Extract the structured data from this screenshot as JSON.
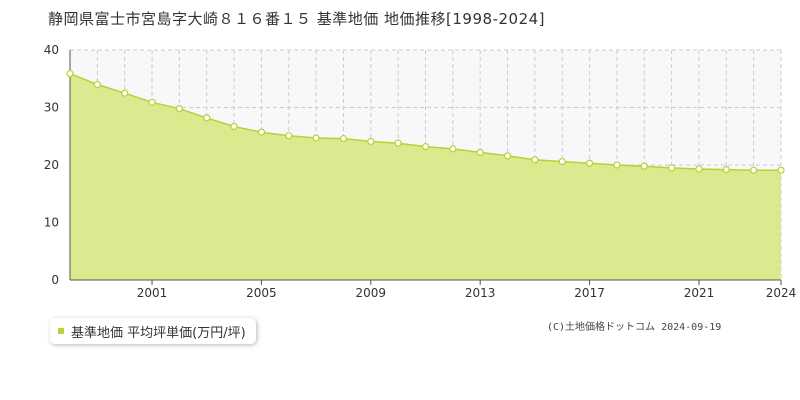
{
  "colors": {
    "area_fill": "#dcea8f",
    "line": "#b5d334",
    "marker_fill": "#ffffff",
    "plot_bg": "#f8f8fa",
    "grid": "#cccccc",
    "legend_swatch": "#b5d334"
  },
  "legend": {
    "label": "基準地価 平均坪単価(万円/坪)"
  },
  "copyright": "(C)土地価格ドットコム 2024-09-19",
  "chart_data": {
    "type": "area",
    "title": "静岡県富士市宮島字大崎８１６番１５ 基準地価 地価推移[1998-2024]",
    "xlabel": "",
    "ylabel": "",
    "x": [
      1998,
      1999,
      2000,
      2001,
      2002,
      2003,
      2004,
      2005,
      2006,
      2007,
      2008,
      2009,
      2010,
      2011,
      2012,
      2013,
      2014,
      2015,
      2016,
      2017,
      2018,
      2019,
      2020,
      2021,
      2022,
      2023,
      2024
    ],
    "series": [
      {
        "name": "基準地価 平均坪単価(万円/坪)",
        "values": [
          35.9,
          34.0,
          32.5,
          30.9,
          29.8,
          28.2,
          26.7,
          25.7,
          25.1,
          24.7,
          24.6,
          24.1,
          23.8,
          23.2,
          22.8,
          22.2,
          21.6,
          20.9,
          20.6,
          20.3,
          20.0,
          19.8,
          19.5,
          19.3,
          19.2,
          19.1,
          19.1
        ]
      }
    ],
    "xlim": [
      1998,
      2024
    ],
    "ylim": [
      0,
      40
    ],
    "yticks": [
      0,
      10,
      20,
      30,
      40
    ],
    "xtick_labels": [
      "2001",
      "2005",
      "2009",
      "2013",
      "2017",
      "2021",
      "2024"
    ],
    "xtick_values": [
      2001,
      2005,
      2009,
      2013,
      2017,
      2021,
      2024
    ],
    "grid": true,
    "legend_position": "bottom-left"
  }
}
